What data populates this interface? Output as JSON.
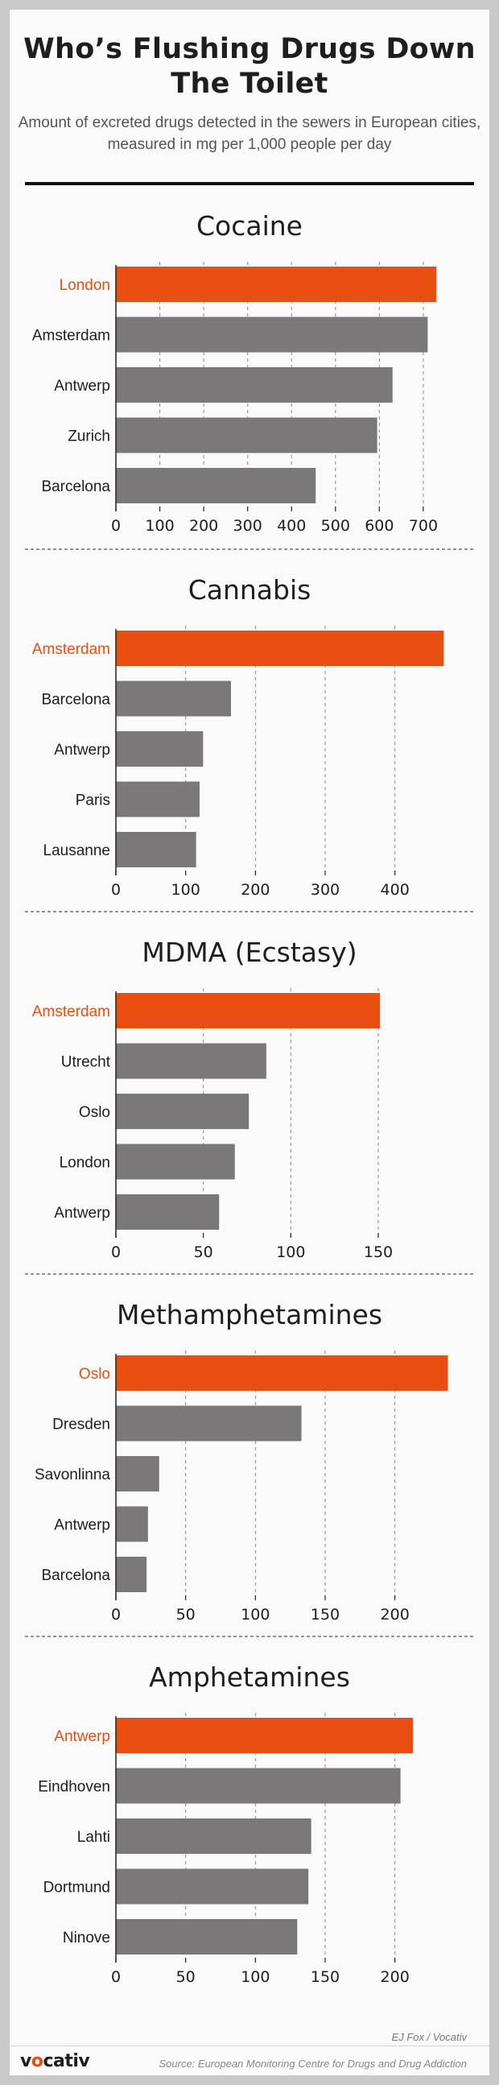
{
  "header": {
    "title": "Who’s Flushing Drugs Down The Toilet",
    "subtitle": "Amount of excreted drugs detected in the sewers in European cities, measured in mg per 1,000 people per day"
  },
  "colors": {
    "highlight": "#e84e0f",
    "bar": "#7a7878",
    "text": "#1e1e1e"
  },
  "chart_data": [
    {
      "type": "bar",
      "orientation": "horizontal",
      "title": "Cocaine",
      "categories": [
        "London",
        "Amsterdam",
        "Antwerp",
        "Zurich",
        "Barcelona"
      ],
      "values": [
        730,
        710,
        630,
        595,
        455
      ],
      "highlight_index": 0,
      "xticks": [
        0,
        100,
        200,
        300,
        400,
        500,
        600,
        700
      ],
      "xlim": [
        0,
        760
      ],
      "grid": "vertical dashed"
    },
    {
      "type": "bar",
      "orientation": "horizontal",
      "title": "Cannabis",
      "categories": [
        "Amsterdam",
        "Barcelona",
        "Antwerp",
        "Paris",
        "Lausanne"
      ],
      "values": [
        470,
        165,
        125,
        120,
        115
      ],
      "highlight_index": 0,
      "xticks": [
        0,
        100,
        200,
        300,
        400
      ],
      "xlim": [
        0,
        480
      ],
      "grid": "vertical dashed"
    },
    {
      "type": "bar",
      "orientation": "horizontal",
      "title": "MDMA (Ecstasy)",
      "categories": [
        "Amsterdam",
        "Utrecht",
        "Oslo",
        "London",
        "Antwerp"
      ],
      "values": [
        151,
        86,
        76,
        68,
        59
      ],
      "highlight_index": 0,
      "xticks": [
        0,
        50,
        100,
        150
      ],
      "xlim": [
        0,
        195
      ],
      "grid": "vertical dashed"
    },
    {
      "type": "bar",
      "orientation": "horizontal",
      "title": "Methamphetamines",
      "categories": [
        "Oslo",
        "Dresden",
        "Savonlinna",
        "Antwerp",
        "Barcelona"
      ],
      "values": [
        238,
        133,
        31,
        23,
        22
      ],
      "highlight_index": 0,
      "xticks": [
        0,
        50,
        100,
        150,
        200
      ],
      "xlim": [
        0,
        245
      ],
      "grid": "vertical dashed"
    },
    {
      "type": "bar",
      "orientation": "horizontal",
      "title": "Amphetamines",
      "categories": [
        "Antwerp",
        "Eindhoven",
        "Lahti",
        "Dortmund",
        "Ninove"
      ],
      "values": [
        213,
        204,
        140,
        138,
        130
      ],
      "highlight_index": 0,
      "xticks": [
        0,
        50,
        100,
        150,
        200
      ],
      "xlim": [
        0,
        245
      ],
      "grid": "vertical dashed"
    }
  ],
  "footer": {
    "credit": "EJ Fox / Vocativ",
    "logo_left": "v",
    "logo_accent": "o",
    "logo_right": "cativ",
    "source": "Source: European Monitoring Centre for Drugs and Drug Addiction"
  }
}
